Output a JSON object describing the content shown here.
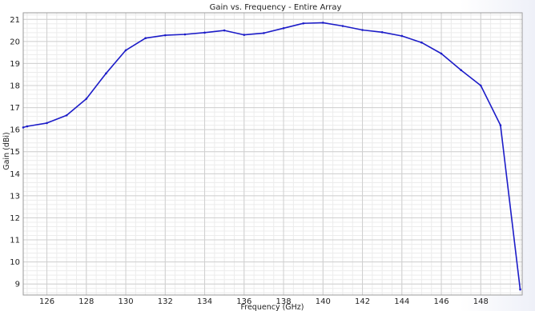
{
  "chart_data": {
    "type": "line",
    "title": "Gain vs. Frequency - Entire Array",
    "xlabel": "Frequency (GHz)",
    "ylabel": "Gain (dBi)",
    "xlim": [
      124.8,
      150.1
    ],
    "ylim": [
      8.5,
      21.3
    ],
    "x_major_ticks": [
      126,
      128,
      130,
      132,
      134,
      136,
      138,
      140,
      142,
      144,
      146,
      148
    ],
    "x_minor_step": 0.5,
    "y_major_ticks": [
      9,
      10,
      11,
      12,
      13,
      14,
      15,
      16,
      17,
      18,
      19,
      20,
      21
    ],
    "y_minor_step": 0.2,
    "grid": true,
    "series": [
      {
        "color": "#1c1cc8",
        "x": [
          124.8,
          125,
          126,
          127,
          128,
          129,
          130,
          131,
          132,
          133,
          134,
          135,
          136,
          137,
          138,
          139,
          140,
          141,
          142,
          143,
          144,
          145,
          146,
          147,
          148,
          149,
          150
        ],
        "y": [
          16.1,
          16.15,
          16.3,
          16.65,
          17.4,
          18.55,
          19.6,
          20.15,
          20.28,
          20.32,
          20.4,
          20.5,
          20.3,
          20.38,
          20.6,
          20.82,
          20.85,
          20.7,
          20.52,
          20.42,
          20.25,
          19.95,
          19.45,
          18.7,
          18.0,
          16.2,
          8.75
        ]
      }
    ]
  }
}
